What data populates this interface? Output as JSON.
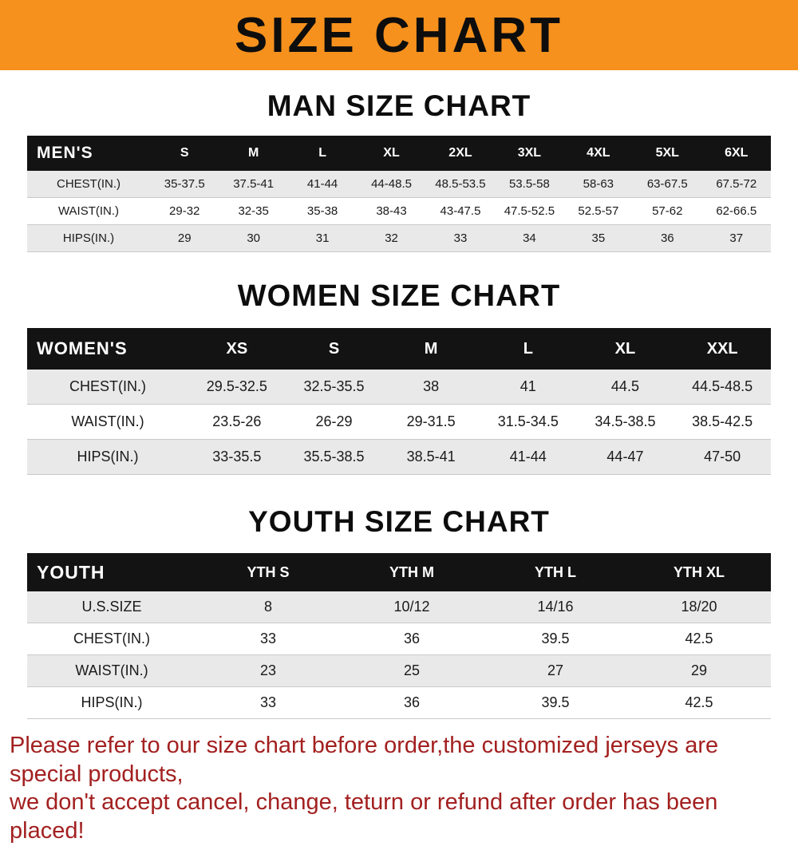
{
  "banner": {
    "title": "SIZE CHART"
  },
  "men": {
    "heading": "MAN SIZE CHART",
    "label": "MEN'S",
    "sizes": [
      "S",
      "M",
      "L",
      "XL",
      "2XL",
      "3XL",
      "4XL",
      "5XL",
      "6XL"
    ],
    "rows": [
      {
        "label": "CHEST(IN.)",
        "values": [
          "35-37.5",
          "37.5-41",
          "41-44",
          "44-48.5",
          "48.5-53.5",
          "53.5-58",
          "58-63",
          "63-67.5",
          "67.5-72"
        ]
      },
      {
        "label": "WAIST(IN.)",
        "values": [
          "29-32",
          "32-35",
          "35-38",
          "38-43",
          "43-47.5",
          "47.5-52.5",
          "52.5-57",
          "57-62",
          "62-66.5"
        ]
      },
      {
        "label": "HIPS(IN.)",
        "values": [
          "29",
          "30",
          "31",
          "32",
          "33",
          "34",
          "35",
          "36",
          "37"
        ]
      }
    ]
  },
  "women": {
    "heading": "WOMEN SIZE CHART",
    "label": "WOMEN'S",
    "sizes": [
      "XS",
      "S",
      "M",
      "L",
      "XL",
      "XXL"
    ],
    "rows": [
      {
        "label": "CHEST(IN.)",
        "values": [
          "29.5-32.5",
          "32.5-35.5",
          "38",
          "41",
          "44.5",
          "44.5-48.5"
        ]
      },
      {
        "label": "WAIST(IN.)",
        "values": [
          "23.5-26",
          "26-29",
          "29-31.5",
          "31.5-34.5",
          "34.5-38.5",
          "38.5-42.5"
        ]
      },
      {
        "label": "HIPS(IN.)",
        "values": [
          "33-35.5",
          "35.5-38.5",
          "38.5-41",
          "41-44",
          "44-47",
          "47-50"
        ]
      }
    ]
  },
  "youth": {
    "heading": "YOUTH SIZE CHART",
    "label": "YOUTH",
    "sizes": [
      "YTH S",
      "YTH M",
      "YTH L",
      "YTH XL"
    ],
    "rows": [
      {
        "label": "U.S.SIZE",
        "values": [
          "8",
          "10/12",
          "14/16",
          "18/20"
        ]
      },
      {
        "label": "CHEST(IN.)",
        "values": [
          "33",
          "36",
          "39.5",
          "42.5"
        ]
      },
      {
        "label": "WAIST(IN.)",
        "values": [
          "23",
          "25",
          "27",
          "29"
        ]
      },
      {
        "label": "HIPS(IN.)",
        "values": [
          "33",
          "36",
          "39.5",
          "42.5"
        ]
      }
    ]
  },
  "footer": {
    "line1": "Please refer to our size chart before order,the customized jerseys are special products,",
    "line2": "we don't accept cancel, change, teturn or refund after order has been placed!"
  },
  "colors": {
    "banner_bg": "#f6911d",
    "table_header_bg": "#131313",
    "row_stripe": "#e9e9e9",
    "footer_text": "#a32020"
  }
}
